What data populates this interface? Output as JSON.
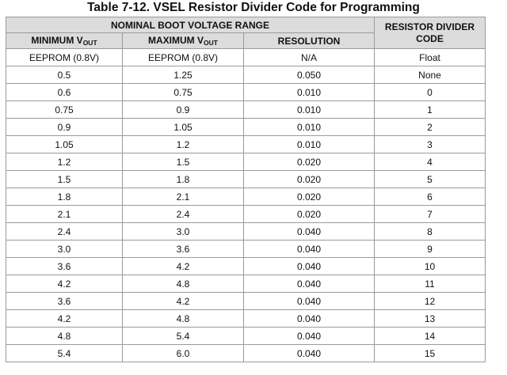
{
  "caption": "Table 7-12. VSEL Resistor Divider Code for Programming",
  "headers": {
    "group": "NOMINAL BOOT VOLTAGE RANGE",
    "min_main": "MINIMUM V",
    "min_sub": "OUT",
    "max_main": "MAXIMUM V",
    "max_sub": "OUT",
    "resolution": "RESOLUTION",
    "code_line1": "RESISTOR DIVIDER",
    "code_line2": "CODE"
  },
  "rows": [
    {
      "min": "EEPROM (0.8V)",
      "max": "EEPROM (0.8V)",
      "res": "N/A",
      "code": "Float"
    },
    {
      "min": "0.5",
      "max": "1.25",
      "res": "0.050",
      "code": "None"
    },
    {
      "min": "0.6",
      "max": "0.75",
      "res": "0.010",
      "code": "0"
    },
    {
      "min": "0.75",
      "max": "0.9",
      "res": "0.010",
      "code": "1"
    },
    {
      "min": "0.9",
      "max": "1.05",
      "res": "0.010",
      "code": "2"
    },
    {
      "min": "1.05",
      "max": "1.2",
      "res": "0.010",
      "code": "3"
    },
    {
      "min": "1.2",
      "max": "1.5",
      "res": "0.020",
      "code": "4"
    },
    {
      "min": "1.5",
      "max": "1.8",
      "res": "0.020",
      "code": "5"
    },
    {
      "min": "1.8",
      "max": "2.1",
      "res": "0.020",
      "code": "6"
    },
    {
      "min": "2.1",
      "max": "2.4",
      "res": "0.020",
      "code": "7"
    },
    {
      "min": "2.4",
      "max": "3.0",
      "res": "0.040",
      "code": "8"
    },
    {
      "min": "3.0",
      "max": "3.6",
      "res": "0.040",
      "code": "9"
    },
    {
      "min": "3.6",
      "max": "4.2",
      "res": "0.040",
      "code": "10"
    },
    {
      "min": "4.2",
      "max": "4.8",
      "res": "0.040",
      "code": "11"
    },
    {
      "min": "3.6",
      "max": "4.2",
      "res": "0.040",
      "code": "12"
    },
    {
      "min": "4.2",
      "max": "4.8",
      "res": "0.040",
      "code": "13"
    },
    {
      "min": "4.8",
      "max": "5.4",
      "res": "0.040",
      "code": "14"
    },
    {
      "min": "5.4",
      "max": "6.0",
      "res": "0.040",
      "code": "15"
    }
  ]
}
